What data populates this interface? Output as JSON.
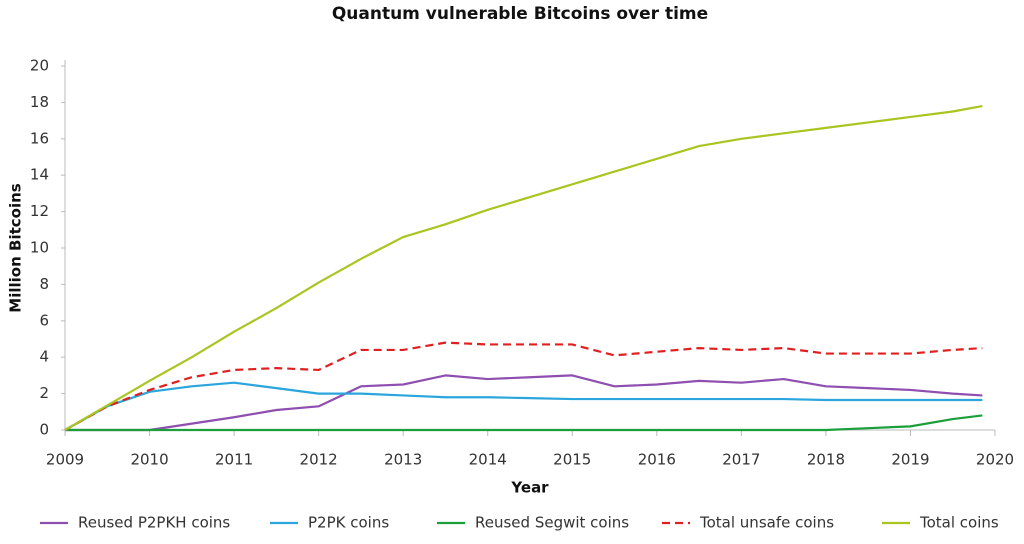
{
  "chart_data": {
    "type": "line",
    "title": "Quantum vulnerable Bitcoins over time",
    "x_label": "Year",
    "y_label": "Million Bitcoins",
    "x": [
      2009,
      2009.5,
      2010,
      2010.5,
      2011,
      2011.5,
      2012,
      2012.5,
      2013,
      2013.5,
      2014,
      2014.5,
      2015,
      2015.5,
      2016,
      2016.5,
      2017,
      2017.5,
      2018,
      2018.5,
      2019,
      2019.5,
      2019.85
    ],
    "series": [
      {
        "name": "Reused P2PKH coins",
        "color": "#8e4fb0",
        "values": [
          0,
          0,
          0,
          0.35,
          0.7,
          1.1,
          1.3,
          2.4,
          2.5,
          3.0,
          2.8,
          2.9,
          3.0,
          2.4,
          2.5,
          2.7,
          2.6,
          2.8,
          2.4,
          2.3,
          2.2,
          2.0,
          1.9
        ]
      },
      {
        "name": "P2PK coins",
        "color": "#2aa6dc",
        "values": [
          0,
          1.3,
          2.1,
          2.4,
          2.6,
          2.3,
          2.0,
          2.0,
          1.9,
          1.8,
          1.8,
          1.75,
          1.7,
          1.7,
          1.7,
          1.7,
          1.7,
          1.7,
          1.65,
          1.65,
          1.65,
          1.65,
          1.65
        ]
      },
      {
        "name": "Reused Segwit coins",
        "color": "#1a9f3a",
        "values": [
          0,
          0,
          0,
          0,
          0,
          0,
          0,
          0,
          0,
          0,
          0,
          0,
          0,
          0,
          0,
          0,
          0,
          0,
          0,
          0.1,
          0.2,
          0.6,
          0.8
        ]
      },
      {
        "name": "Total unsafe coins",
        "color": "#e02020",
        "dashed": true,
        "values": [
          0,
          1.3,
          2.2,
          2.9,
          3.3,
          3.4,
          3.3,
          4.4,
          4.4,
          4.8,
          4.7,
          4.7,
          4.7,
          4.1,
          4.3,
          4.5,
          4.4,
          4.5,
          4.2,
          4.2,
          4.2,
          4.4,
          4.5
        ]
      },
      {
        "name": "Total coins",
        "color": "#a8c520",
        "values": [
          0,
          1.35,
          2.7,
          4.0,
          5.4,
          6.7,
          8.1,
          9.4,
          10.6,
          11.3,
          12.1,
          12.8,
          13.5,
          14.2,
          14.9,
          15.6,
          16.0,
          16.3,
          16.6,
          16.9,
          17.2,
          17.5,
          17.8
        ]
      }
    ],
    "xlim": [
      2009,
      2020
    ],
    "xticks": [
      2009,
      2010,
      2011,
      2012,
      2013,
      2014,
      2015,
      2016,
      2017,
      2018,
      2019,
      2020
    ],
    "ylim": [
      0,
      20
    ],
    "yticks": [
      0,
      2,
      4,
      6,
      8,
      10,
      12,
      14,
      16,
      18,
      20
    ],
    "grid": false,
    "legend": "bottom"
  }
}
